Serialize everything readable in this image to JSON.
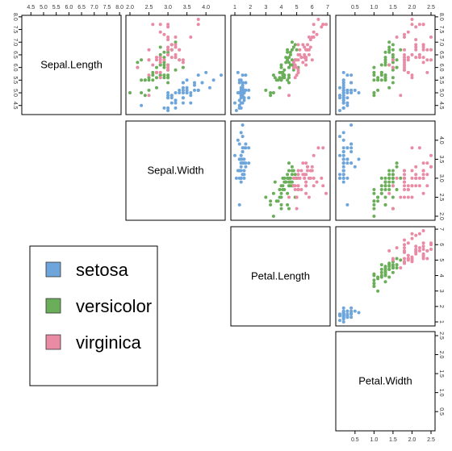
{
  "chart_data": {
    "type": "scatter",
    "title": "",
    "variables": [
      "Sepal.Length",
      "Sepal.Width",
      "Petal.Length",
      "Petal.Width"
    ],
    "ranges": [
      [
        4.3,
        7.9
      ],
      [
        2.0,
        4.4
      ],
      [
        1.0,
        6.9
      ],
      [
        0.1,
        2.5
      ]
    ],
    "ticks": [
      [
        "4.5",
        "5.0",
        "5.5",
        "6.0",
        "6.5",
        "7.0",
        "7.5",
        "8.0"
      ],
      [
        "2.0",
        "2.5",
        "3.0",
        "3.5",
        "4.0"
      ],
      [
        "1",
        "2",
        "3",
        "4",
        "5",
        "6",
        "7"
      ],
      [
        "0.5",
        "1.0",
        "1.5",
        "2.0",
        "2.5"
      ]
    ],
    "series_colors": {
      "setosa": "#6ea6db",
      "versicolor": "#6aae5a",
      "virginica": "#e98ba5"
    },
    "legend": {
      "location": "bottom-left",
      "entries": [
        {
          "name": "setosa",
          "color": "#6ea6db"
        },
        {
          "name": "versicolor",
          "color": "#6aae5a"
        },
        {
          "name": "virginica",
          "color": "#e98ba5"
        }
      ]
    },
    "series": [
      {
        "name": "setosa",
        "color": "#6ea6db",
        "points": [
          [
            5.1,
            3.5,
            1.4,
            0.2
          ],
          [
            4.9,
            3.0,
            1.4,
            0.2
          ],
          [
            4.7,
            3.2,
            1.3,
            0.2
          ],
          [
            4.6,
            3.1,
            1.5,
            0.2
          ],
          [
            5.0,
            3.6,
            1.4,
            0.2
          ],
          [
            5.4,
            3.9,
            1.7,
            0.4
          ],
          [
            4.6,
            3.4,
            1.4,
            0.3
          ],
          [
            5.0,
            3.4,
            1.5,
            0.2
          ],
          [
            4.4,
            2.9,
            1.4,
            0.2
          ],
          [
            4.9,
            3.1,
            1.5,
            0.1
          ],
          [
            5.4,
            3.7,
            1.5,
            0.2
          ],
          [
            4.8,
            3.4,
            1.6,
            0.2
          ],
          [
            4.8,
            3.0,
            1.4,
            0.1
          ],
          [
            4.3,
            3.0,
            1.1,
            0.1
          ],
          [
            5.8,
            4.0,
            1.2,
            0.2
          ],
          [
            5.7,
            4.4,
            1.5,
            0.4
          ],
          [
            5.4,
            3.9,
            1.3,
            0.4
          ],
          [
            5.1,
            3.5,
            1.4,
            0.3
          ],
          [
            5.7,
            3.8,
            1.7,
            0.3
          ],
          [
            5.1,
            3.8,
            1.5,
            0.3
          ],
          [
            5.4,
            3.4,
            1.7,
            0.2
          ],
          [
            5.1,
            3.7,
            1.5,
            0.4
          ],
          [
            4.6,
            3.6,
            1.0,
            0.2
          ],
          [
            5.1,
            3.3,
            1.7,
            0.5
          ],
          [
            4.8,
            3.4,
            1.9,
            0.2
          ],
          [
            5.0,
            3.0,
            1.6,
            0.2
          ],
          [
            5.0,
            3.4,
            1.6,
            0.4
          ],
          [
            5.2,
            3.5,
            1.5,
            0.2
          ],
          [
            5.2,
            3.4,
            1.4,
            0.2
          ],
          [
            4.7,
            3.2,
            1.6,
            0.2
          ],
          [
            4.8,
            3.1,
            1.6,
            0.2
          ],
          [
            5.4,
            3.4,
            1.5,
            0.4
          ],
          [
            5.2,
            4.1,
            1.5,
            0.1
          ],
          [
            5.5,
            4.2,
            1.4,
            0.2
          ],
          [
            4.9,
            3.1,
            1.5,
            0.2
          ],
          [
            5.0,
            3.2,
            1.2,
            0.2
          ],
          [
            5.5,
            3.5,
            1.3,
            0.2
          ],
          [
            4.9,
            3.6,
            1.4,
            0.1
          ],
          [
            4.4,
            3.0,
            1.3,
            0.2
          ],
          [
            5.1,
            3.4,
            1.5,
            0.2
          ],
          [
            5.0,
            3.5,
            1.3,
            0.3
          ],
          [
            4.5,
            2.3,
            1.3,
            0.3
          ],
          [
            4.4,
            3.2,
            1.3,
            0.2
          ],
          [
            5.0,
            3.5,
            1.6,
            0.6
          ],
          [
            5.1,
            3.8,
            1.9,
            0.4
          ],
          [
            4.8,
            3.0,
            1.4,
            0.3
          ],
          [
            5.1,
            3.8,
            1.6,
            0.2
          ],
          [
            4.6,
            3.2,
            1.4,
            0.2
          ],
          [
            5.3,
            3.7,
            1.5,
            0.2
          ],
          [
            5.0,
            3.3,
            1.4,
            0.2
          ]
        ]
      },
      {
        "name": "versicolor",
        "color": "#6aae5a",
        "points": [
          [
            7.0,
            3.2,
            4.7,
            1.4
          ],
          [
            6.4,
            3.2,
            4.5,
            1.5
          ],
          [
            6.9,
            3.1,
            4.9,
            1.5
          ],
          [
            5.5,
            2.3,
            4.0,
            1.3
          ],
          [
            6.5,
            2.8,
            4.6,
            1.5
          ],
          [
            5.7,
            2.8,
            4.5,
            1.3
          ],
          [
            6.3,
            3.3,
            4.7,
            1.6
          ],
          [
            4.9,
            2.4,
            3.3,
            1.0
          ],
          [
            6.6,
            2.9,
            4.6,
            1.3
          ],
          [
            5.2,
            2.7,
            3.9,
            1.4
          ],
          [
            5.0,
            2.0,
            3.5,
            1.0
          ],
          [
            5.9,
            3.0,
            4.2,
            1.5
          ],
          [
            6.0,
            2.2,
            4.0,
            1.0
          ],
          [
            6.1,
            2.9,
            4.7,
            1.4
          ],
          [
            5.6,
            2.9,
            3.6,
            1.3
          ],
          [
            6.7,
            3.1,
            4.4,
            1.4
          ],
          [
            5.6,
            3.0,
            4.5,
            1.5
          ],
          [
            5.8,
            2.7,
            4.1,
            1.0
          ],
          [
            6.2,
            2.2,
            4.5,
            1.5
          ],
          [
            5.6,
            2.5,
            3.9,
            1.1
          ],
          [
            5.9,
            3.2,
            4.8,
            1.8
          ],
          [
            6.1,
            2.8,
            4.0,
            1.3
          ],
          [
            6.3,
            2.5,
            4.9,
            1.5
          ],
          [
            6.1,
            2.8,
            4.7,
            1.2
          ],
          [
            6.4,
            2.9,
            4.3,
            1.3
          ],
          [
            6.6,
            3.0,
            4.4,
            1.4
          ],
          [
            6.8,
            2.8,
            4.8,
            1.4
          ],
          [
            6.7,
            3.0,
            5.0,
            1.7
          ],
          [
            6.0,
            2.9,
            4.5,
            1.5
          ],
          [
            5.7,
            2.6,
            3.5,
            1.0
          ],
          [
            5.5,
            2.4,
            3.8,
            1.1
          ],
          [
            5.5,
            2.4,
            3.7,
            1.0
          ],
          [
            5.8,
            2.7,
            3.9,
            1.2
          ],
          [
            6.0,
            2.7,
            5.1,
            1.6
          ],
          [
            5.4,
            3.0,
            4.5,
            1.5
          ],
          [
            6.0,
            3.4,
            4.5,
            1.6
          ],
          [
            6.7,
            3.1,
            4.7,
            1.5
          ],
          [
            6.3,
            2.3,
            4.4,
            1.3
          ],
          [
            5.6,
            3.0,
            4.1,
            1.3
          ],
          [
            5.5,
            2.5,
            4.0,
            1.3
          ],
          [
            5.5,
            2.6,
            4.4,
            1.2
          ],
          [
            6.1,
            3.0,
            4.6,
            1.4
          ],
          [
            5.8,
            2.6,
            4.0,
            1.2
          ],
          [
            5.0,
            2.3,
            3.3,
            1.0
          ],
          [
            5.6,
            2.7,
            4.2,
            1.3
          ],
          [
            5.7,
            3.0,
            4.2,
            1.2
          ],
          [
            5.7,
            2.9,
            4.2,
            1.3
          ],
          [
            6.2,
            2.9,
            4.3,
            1.3
          ],
          [
            5.1,
            2.5,
            3.0,
            1.1
          ],
          [
            5.7,
            2.8,
            4.1,
            1.3
          ]
        ]
      },
      {
        "name": "virginica",
        "color": "#e98ba5",
        "points": [
          [
            6.3,
            3.3,
            6.0,
            2.5
          ],
          [
            5.8,
            2.7,
            5.1,
            1.9
          ],
          [
            7.1,
            3.0,
            5.9,
            2.1
          ],
          [
            6.3,
            2.9,
            5.6,
            1.8
          ],
          [
            6.5,
            3.0,
            5.8,
            2.2
          ],
          [
            7.6,
            3.0,
            6.6,
            2.1
          ],
          [
            4.9,
            2.5,
            4.5,
            1.7
          ],
          [
            7.3,
            2.9,
            6.3,
            1.8
          ],
          [
            6.7,
            2.5,
            5.8,
            1.8
          ],
          [
            7.2,
            3.6,
            6.1,
            2.5
          ],
          [
            6.5,
            3.2,
            5.1,
            2.0
          ],
          [
            6.4,
            2.7,
            5.3,
            1.9
          ],
          [
            6.8,
            3.0,
            5.5,
            2.1
          ],
          [
            5.7,
            2.5,
            5.0,
            2.0
          ],
          [
            5.8,
            2.8,
            5.1,
            2.4
          ],
          [
            6.4,
            3.2,
            5.3,
            2.3
          ],
          [
            6.5,
            3.0,
            5.5,
            1.8
          ],
          [
            7.7,
            3.8,
            6.7,
            2.2
          ],
          [
            7.7,
            2.6,
            6.9,
            2.3
          ],
          [
            6.0,
            2.2,
            5.0,
            1.5
          ],
          [
            6.9,
            3.2,
            5.7,
            2.3
          ],
          [
            5.6,
            2.8,
            4.9,
            2.0
          ],
          [
            7.7,
            2.8,
            6.7,
            2.0
          ],
          [
            6.3,
            2.7,
            4.9,
            1.8
          ],
          [
            6.7,
            3.3,
            5.7,
            2.1
          ],
          [
            7.2,
            3.2,
            6.0,
            1.8
          ],
          [
            6.2,
            2.8,
            4.8,
            1.8
          ],
          [
            6.1,
            3.0,
            4.9,
            1.8
          ],
          [
            6.4,
            2.8,
            5.6,
            2.1
          ],
          [
            7.2,
            3.0,
            5.8,
            1.6
          ],
          [
            7.4,
            2.8,
            6.1,
            1.9
          ],
          [
            7.9,
            3.8,
            6.4,
            2.0
          ],
          [
            6.4,
            2.8,
            5.6,
            2.2
          ],
          [
            6.3,
            2.8,
            5.1,
            1.5
          ],
          [
            6.1,
            2.6,
            5.6,
            1.4
          ],
          [
            7.7,
            3.0,
            6.1,
            2.3
          ],
          [
            6.3,
            3.4,
            5.6,
            2.4
          ],
          [
            6.4,
            3.1,
            5.5,
            1.8
          ],
          [
            6.0,
            3.0,
            4.8,
            1.8
          ],
          [
            6.9,
            3.1,
            5.4,
            2.1
          ],
          [
            6.7,
            3.1,
            5.6,
            2.4
          ],
          [
            6.9,
            3.1,
            5.1,
            2.3
          ],
          [
            5.8,
            2.7,
            5.1,
            1.9
          ],
          [
            6.8,
            3.2,
            5.9,
            2.3
          ],
          [
            6.7,
            3.3,
            5.7,
            2.5
          ],
          [
            6.7,
            3.0,
            5.2,
            2.3
          ],
          [
            6.3,
            2.5,
            5.0,
            1.9
          ],
          [
            6.5,
            3.0,
            5.2,
            2.0
          ],
          [
            6.2,
            3.4,
            5.4,
            2.3
          ],
          [
            5.9,
            3.0,
            5.1,
            1.8
          ]
        ]
      }
    ]
  }
}
